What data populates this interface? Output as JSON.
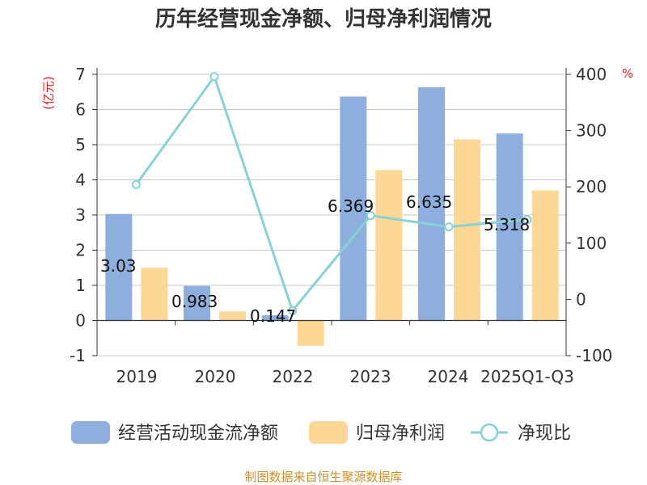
{
  "chart_data": {
    "type": "bar",
    "title": "历年经营现金净额、归母净利润情况",
    "categories": [
      "2019",
      "2020",
      "2022",
      "2023",
      "2024",
      "2025Q1-Q3"
    ],
    "y_left": {
      "unit": "(亿元)",
      "min": -1,
      "max": 7,
      "ticks": [
        -1,
        0,
        1,
        2,
        3,
        4,
        5,
        6,
        7
      ]
    },
    "y_right": {
      "unit": "%",
      "min": -100,
      "max": 400,
      "ticks": [
        -100,
        0,
        100,
        200,
        300,
        400
      ]
    },
    "grid": true,
    "legend_position": "bottom",
    "series": [
      {
        "name": "经营活动现金流净额",
        "kind": "bar",
        "axis": "left",
        "color": "#8eaedd",
        "values": [
          3.03,
          0.983,
          0.147,
          6.369,
          6.635,
          5.318
        ],
        "labels": [
          "3.03",
          "0.983",
          "0.147",
          "6.369",
          "6.635",
          "5.318"
        ]
      },
      {
        "name": "归母净利润",
        "kind": "bar",
        "axis": "left",
        "color": "#fdd795",
        "values": [
          1.5,
          0.26,
          -0.72,
          4.28,
          5.15,
          3.7
        ]
      },
      {
        "name": "净现比",
        "kind": "line",
        "axis": "right",
        "color": "#88d1d6",
        "values": [
          204,
          396,
          -20,
          149,
          129,
          142
        ]
      }
    ]
  },
  "footer": {
    "source": "制图数据来自恒生聚源数据库"
  }
}
